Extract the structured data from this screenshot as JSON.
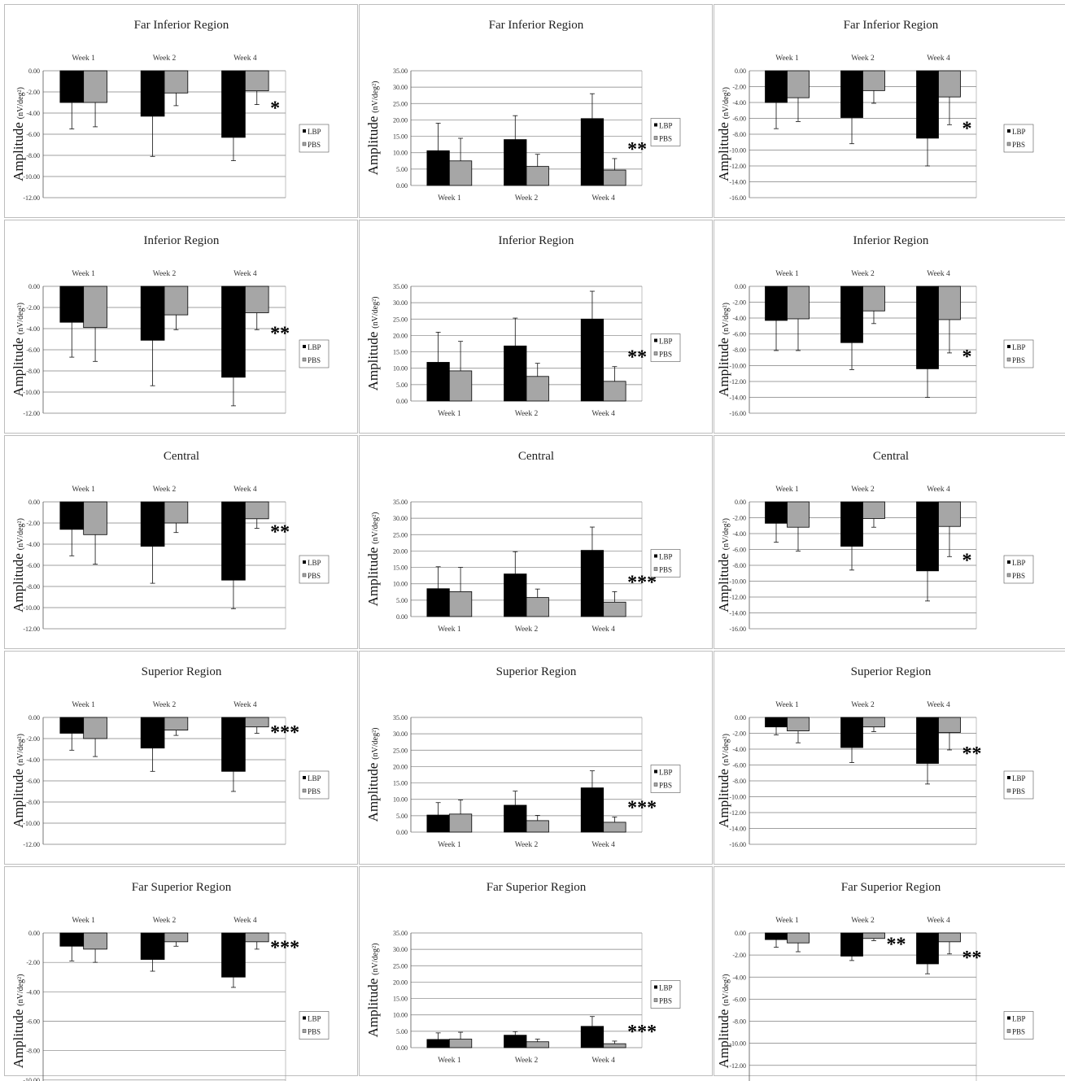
{
  "charts": {
    "row1": {
      "title": "Far Inferior Region",
      "a1": {
        "label": "Amplitude",
        "unit": "(nV/deg²)"
      },
      "a2": {
        "label": "Amplitude",
        "unit": "(nV/deg²)"
      },
      "a3": {
        "label": "Amplitude",
        "unit": "(nV/deg²)"
      }
    },
    "row2": {
      "title": "Inferior Region",
      "a1": {
        "label": "Amplitude",
        "unit": "(nV/deg²)"
      },
      "a2": {
        "label": "Amplitude",
        "unit": "(nV/deg²)"
      },
      "a3": {
        "label": "Amplitude",
        "unit": "(nV/deg²)"
      }
    },
    "row3": {
      "title": "Central",
      "a1": {
        "label": "Amplitude",
        "unit": "(nV/deg²)"
      },
      "a2": {
        "label": "Amplitude",
        "unit": "(nV/deg²)"
      },
      "a3": {
        "label": "Amplitude",
        "unit": "(nV/deg²)"
      }
    },
    "row4": {
      "title": "Superior Region",
      "a1": {
        "label": "Amplitude",
        "unit": "(nV/deg²)"
      },
      "a2": {
        "label": "Amplitude",
        "unit": "(nV/deg²)"
      },
      "a3": {
        "label": "Amplitude",
        "unit": "(nV/deg²)"
      }
    },
    "row5": {
      "title": "Far Superior Region",
      "a1": {
        "label": "Amplitude",
        "unit": "(nV/deg²)"
      },
      "a2": {
        "label": "Amplitude",
        "unit": "(nV/deg²)"
      },
      "a3": {
        "label": "Amplitude",
        "unit": "(nV/deg²)"
      }
    }
  },
  "legend": {
    "lbp": "LBP",
    "pbs": "PBS"
  },
  "colors": {
    "lbp": "#000000",
    "pbs": "#a6a6a6",
    "grid": "#7f7f7f"
  },
  "chart_data": [
    {
      "type": "bar",
      "title": "Far Inferior Region",
      "categories": [
        "Week 1",
        "Week 2",
        "Week 4"
      ],
      "series": [
        {
          "name": "LBP",
          "values": [
            -3.0,
            -4.3,
            -6.3
          ],
          "errors": [
            2.5,
            3.8,
            2.2
          ]
        },
        {
          "name": "PBS",
          "values": [
            -3.0,
            -2.1,
            -1.9
          ],
          "errors": [
            2.3,
            1.2,
            1.3
          ]
        }
      ],
      "ylim": [
        -12,
        0
      ],
      "ylabel": "Amplitude (nV/deg²)",
      "sig": [
        "",
        "",
        "*"
      ]
    },
    {
      "type": "bar",
      "title": "Far Inferior Region",
      "categories": [
        "Week 1",
        "Week 2",
        "Week 4"
      ],
      "series": [
        {
          "name": "LBP",
          "values": [
            10.6,
            14.0,
            20.4
          ],
          "errors": [
            8.4,
            7.3,
            7.6
          ]
        },
        {
          "name": "PBS",
          "values": [
            7.5,
            5.8,
            4.7
          ],
          "errors": [
            6.9,
            3.7,
            3.5
          ]
        }
      ],
      "ylim": [
        0,
        35
      ],
      "ylabel": "Amplitude (nV/deg²)",
      "sig": [
        "",
        "",
        "**"
      ]
    },
    {
      "type": "bar",
      "title": "Far Inferior Region",
      "categories": [
        "Week 1",
        "Week 2",
        "Week 4"
      ],
      "series": [
        {
          "name": "LBP",
          "values": [
            -4.0,
            -5.9,
            -8.5
          ],
          "errors": [
            3.3,
            3.3,
            3.5
          ]
        },
        {
          "name": "PBS",
          "values": [
            -3.4,
            -2.5,
            -3.3
          ],
          "errors": [
            3.0,
            1.6,
            3.5
          ]
        }
      ],
      "ylim": [
        -16,
        0
      ],
      "ylabel": "Amplitude (nV/deg²)",
      "sig": [
        "",
        "",
        "*"
      ]
    },
    {
      "type": "bar",
      "title": "Inferior Region",
      "categories": [
        "Week 1",
        "Week 2",
        "Week 4"
      ],
      "series": [
        {
          "name": "LBP",
          "values": [
            -3.4,
            -5.1,
            -8.6
          ],
          "errors": [
            3.3,
            4.3,
            2.7
          ]
        },
        {
          "name": "PBS",
          "values": [
            -3.9,
            -2.7,
            -2.5
          ],
          "errors": [
            3.2,
            1.4,
            1.6
          ]
        }
      ],
      "ylim": [
        -12,
        0
      ],
      "ylabel": "Amplitude (nV/deg²)",
      "sig": [
        "",
        "",
        "**"
      ]
    },
    {
      "type": "bar",
      "title": "Inferior Region",
      "categories": [
        "Week 1",
        "Week 2",
        "Week 4"
      ],
      "series": [
        {
          "name": "LBP",
          "values": [
            11.8,
            16.8,
            25.0
          ],
          "errors": [
            9.2,
            8.5,
            8.5
          ]
        },
        {
          "name": "PBS",
          "values": [
            9.2,
            7.5,
            6.0
          ],
          "errors": [
            9.0,
            4.0,
            4.5
          ]
        }
      ],
      "ylim": [
        0,
        35
      ],
      "ylabel": "Amplitude (nV/deg²)",
      "sig": [
        "",
        "",
        "**"
      ]
    },
    {
      "type": "bar",
      "title": "Inferior Region",
      "categories": [
        "Week 1",
        "Week 2",
        "Week 4"
      ],
      "series": [
        {
          "name": "LBP",
          "values": [
            -4.3,
            -7.1,
            -10.4
          ],
          "errors": [
            3.8,
            3.4,
            3.6
          ]
        },
        {
          "name": "PBS",
          "values": [
            -4.1,
            -3.1,
            -4.2
          ],
          "errors": [
            4.0,
            1.6,
            4.2
          ]
        }
      ],
      "ylim": [
        -16,
        0
      ],
      "ylabel": "Amplitude (nV/deg²)",
      "sig": [
        "",
        "",
        "*"
      ]
    },
    {
      "type": "bar",
      "title": "Central",
      "categories": [
        "Week 1",
        "Week 2",
        "Week 4"
      ],
      "series": [
        {
          "name": "LBP",
          "values": [
            -2.6,
            -4.2,
            -7.4
          ],
          "errors": [
            2.5,
            3.5,
            2.7
          ]
        },
        {
          "name": "PBS",
          "values": [
            -3.1,
            -2.0,
            -1.6
          ],
          "errors": [
            2.8,
            0.9,
            0.9
          ]
        }
      ],
      "ylim": [
        -12,
        0
      ],
      "ylabel": "Amplitude (nV/deg²)",
      "sig": [
        "",
        "",
        "**"
      ]
    },
    {
      "type": "bar",
      "title": "Central",
      "categories": [
        "Week 1",
        "Week 2",
        "Week 4"
      ],
      "series": [
        {
          "name": "LBP",
          "values": [
            8.5,
            13.0,
            20.2
          ],
          "errors": [
            6.7,
            6.8,
            7.1
          ]
        },
        {
          "name": "PBS",
          "values": [
            7.6,
            5.8,
            4.4
          ],
          "errors": [
            7.4,
            2.6,
            3.2
          ]
        }
      ],
      "ylim": [
        0,
        35
      ],
      "ylabel": "Amplitude (nV/deg²)",
      "sig": [
        "",
        "",
        "***"
      ]
    },
    {
      "type": "bar",
      "title": "Central",
      "categories": [
        "Week 1",
        "Week 2",
        "Week 4"
      ],
      "series": [
        {
          "name": "LBP",
          "values": [
            -2.7,
            -5.6,
            -8.7
          ],
          "errors": [
            2.4,
            3.0,
            3.8
          ]
        },
        {
          "name": "PBS",
          "values": [
            -3.2,
            -2.1,
            -3.1
          ],
          "errors": [
            3.0,
            1.1,
            3.8
          ]
        }
      ],
      "ylim": [
        -16,
        0
      ],
      "ylabel": "Amplitude (nV/deg²)",
      "sig": [
        "",
        "",
        "*"
      ]
    },
    {
      "type": "bar",
      "title": "Superior Region",
      "categories": [
        "Week 1",
        "Week 2",
        "Week 4"
      ],
      "series": [
        {
          "name": "LBP",
          "values": [
            -1.5,
            -2.9,
            -5.1
          ],
          "errors": [
            1.6,
            2.2,
            1.9
          ]
        },
        {
          "name": "PBS",
          "values": [
            -2.0,
            -1.2,
            -0.9
          ],
          "errors": [
            1.7,
            0.5,
            0.6
          ]
        }
      ],
      "ylim": [
        -12,
        0
      ],
      "ylabel": "Amplitude (nV/deg²)",
      "sig": [
        "",
        "",
        "***"
      ]
    },
    {
      "type": "bar",
      "title": "Superior Region",
      "categories": [
        "Week 1",
        "Week 2",
        "Week 4"
      ],
      "series": [
        {
          "name": "LBP",
          "values": [
            5.2,
            8.2,
            13.5
          ],
          "errors": [
            3.8,
            4.3,
            5.2
          ]
        },
        {
          "name": "PBS",
          "values": [
            5.5,
            3.5,
            3.0
          ],
          "errors": [
            4.3,
            1.6,
            1.6
          ]
        }
      ],
      "ylim": [
        0,
        35
      ],
      "ylabel": "Amplitude (nV/deg²)",
      "sig": [
        "",
        "",
        "***"
      ]
    },
    {
      "type": "bar",
      "title": "Superior Region",
      "categories": [
        "Week 1",
        "Week 2",
        "Week 4"
      ],
      "series": [
        {
          "name": "LBP",
          "values": [
            -1.2,
            -3.8,
            -5.8
          ],
          "errors": [
            1.0,
            1.9,
            2.6
          ]
        },
        {
          "name": "PBS",
          "values": [
            -1.7,
            -1.2,
            -1.9
          ],
          "errors": [
            1.5,
            0.6,
            2.2
          ]
        }
      ],
      "ylim": [
        -16,
        0
      ],
      "ylabel": "Amplitude (nV/deg²)",
      "sig": [
        "",
        "",
        "**"
      ]
    },
    {
      "type": "bar",
      "title": "Far Superior Region",
      "categories": [
        "Week 1",
        "Week 2",
        "Week 4"
      ],
      "series": [
        {
          "name": "LBP",
          "values": [
            -0.9,
            -1.8,
            -3.0
          ],
          "errors": [
            1.0,
            0.8,
            0.7
          ]
        },
        {
          "name": "PBS",
          "values": [
            -1.1,
            -0.6,
            -0.6
          ],
          "errors": [
            0.9,
            0.3,
            0.5
          ]
        }
      ],
      "ylim": [
        -12,
        0
      ],
      "ylabel": "Amplitude (nV/deg²)",
      "sig": [
        "",
        "",
        "***"
      ]
    },
    {
      "type": "bar",
      "title": "Far Superior Region",
      "categories": [
        "Week 1",
        "Week 2",
        "Week 4"
      ],
      "series": [
        {
          "name": "LBP",
          "values": [
            2.5,
            3.8,
            6.5
          ],
          "errors": [
            2.0,
            1.1,
            3.0
          ]
        },
        {
          "name": "PBS",
          "values": [
            2.6,
            1.8,
            1.2
          ],
          "errors": [
            2.1,
            0.8,
            0.8
          ]
        }
      ],
      "ylim": [
        0,
        35
      ],
      "ylabel": "Amplitude (nV/deg²)",
      "sig": [
        "",
        "",
        "***"
      ]
    },
    {
      "type": "bar",
      "title": "Far Superior Region",
      "categories": [
        "Week 1",
        "Week 2",
        "Week 4"
      ],
      "series": [
        {
          "name": "LBP",
          "values": [
            -0.6,
            -2.1,
            -2.8
          ],
          "errors": [
            0.7,
            0.4,
            0.9
          ]
        },
        {
          "name": "PBS",
          "values": [
            -0.9,
            -0.5,
            -0.8
          ],
          "errors": [
            0.8,
            0.2,
            1.1
          ]
        }
      ],
      "ylim": [
        -16,
        0
      ],
      "ylabel": "Amplitude (nV/deg²)",
      "sig": [
        "",
        "**",
        "**"
      ]
    }
  ]
}
